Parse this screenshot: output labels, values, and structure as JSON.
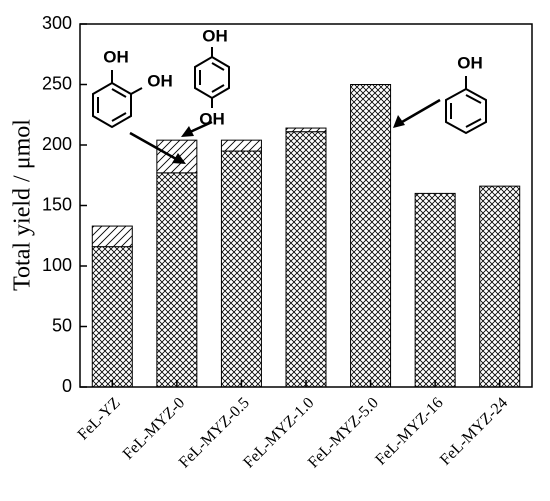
{
  "chart_data": {
    "type": "stacked-bar",
    "ylabel": "Total yield / μmol",
    "categories": [
      "FeL-YZ",
      "FeL-MYZ-0",
      "FeL-MYZ-0.5",
      "FeL-MYZ-1.0",
      "FeL-MYZ-5.0",
      "FeL-MYZ-16",
      "FeL-MYZ-24"
    ],
    "series": [
      {
        "pattern": "crosshatch",
        "values": [
          116,
          177,
          195,
          211,
          250,
          160,
          166
        ]
      },
      {
        "pattern": "diagonal",
        "values": [
          17,
          27,
          9,
          3,
          0,
          0,
          0
        ]
      }
    ],
    "ylim": [
      0,
      300
    ],
    "yticks": [
      0,
      50,
      100,
      150,
      200,
      250,
      300
    ],
    "annotations": [
      "OH",
      "OH",
      "OH",
      "OH",
      "OH"
    ]
  }
}
